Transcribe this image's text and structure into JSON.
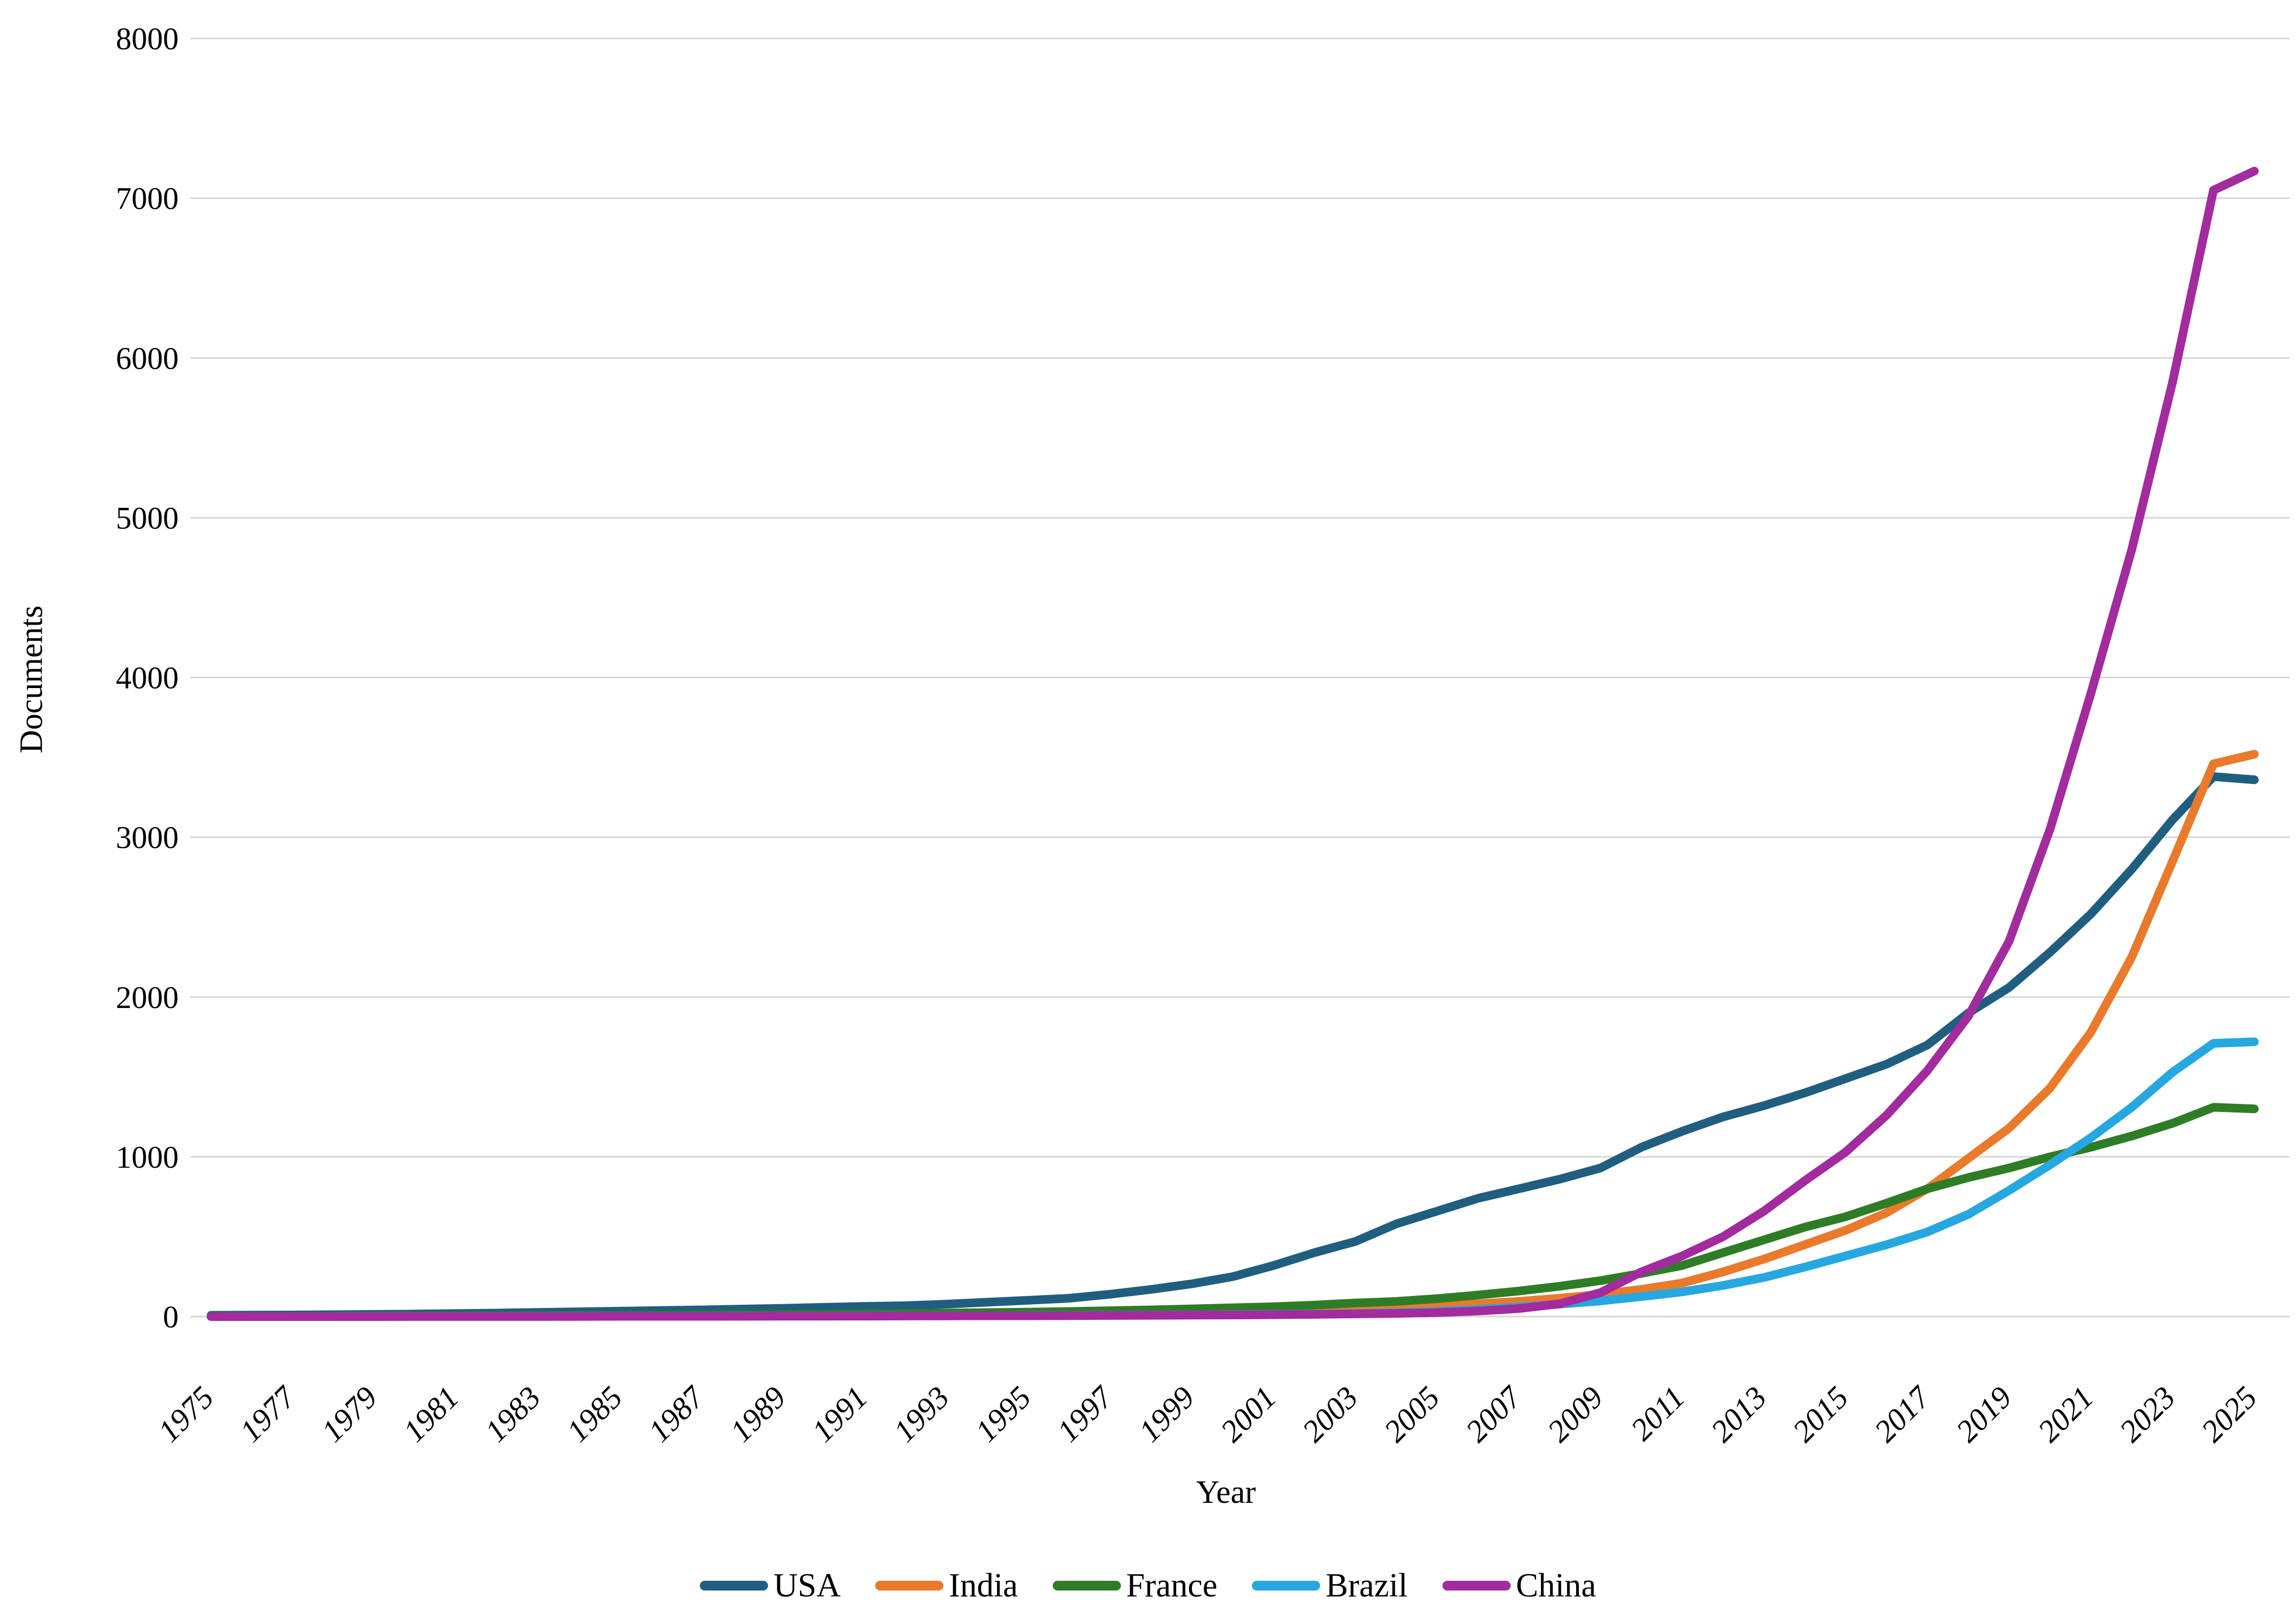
{
  "chart_data": {
    "type": "line",
    "title": "",
    "xlabel": "Year",
    "ylabel": "Documents",
    "ylim": [
      0,
      8000
    ],
    "grid": "horizontal",
    "legend_position": "bottom-center",
    "yticks": [
      0,
      1000,
      2000,
      3000,
      4000,
      5000,
      6000,
      7000,
      8000
    ],
    "xticks": [
      1975,
      1977,
      1979,
      1981,
      1983,
      1985,
      1987,
      1989,
      1991,
      1993,
      1995,
      1997,
      1999,
      2001,
      2003,
      2005,
      2007,
      2009,
      2011,
      2013,
      2015,
      2017,
      2019,
      2021,
      2023,
      2025
    ],
    "years": [
      1975,
      1976,
      1977,
      1978,
      1979,
      1980,
      1981,
      1982,
      1983,
      1984,
      1985,
      1986,
      1987,
      1988,
      1989,
      1990,
      1991,
      1992,
      1993,
      1994,
      1995,
      1996,
      1997,
      1998,
      1999,
      2000,
      2001,
      2002,
      2003,
      2004,
      2005,
      2006,
      2007,
      2008,
      2009,
      2010,
      2011,
      2012,
      2013,
      2014,
      2015,
      2016,
      2017,
      2018,
      2019,
      2020,
      2021,
      2022,
      2023,
      2024,
      2025
    ],
    "series": [
      {
        "name": "USA",
        "color": "#205E80",
        "values": [
          8,
          9,
          10,
          12,
          14,
          16,
          19,
          22,
          26,
          30,
          34,
          38,
          42,
          47,
          52,
          58,
          64,
          68,
          78,
          90,
          102,
          115,
          140,
          170,
          205,
          250,
          320,
          400,
          470,
          580,
          660,
          740,
          800,
          860,
          930,
          1060,
          1160,
          1250,
          1320,
          1400,
          1490,
          1580,
          1700,
          1900,
          2060,
          2280,
          2520,
          2800,
          3110,
          3380,
          3360
        ]
      },
      {
        "name": "India",
        "color": "#E97A2B",
        "values": [
          1,
          1,
          1,
          2,
          2,
          2,
          3,
          3,
          4,
          4,
          5,
          5,
          6,
          7,
          8,
          9,
          10,
          11,
          12,
          14,
          16,
          18,
          21,
          24,
          28,
          33,
          38,
          44,
          50,
          56,
          65,
          80,
          95,
          115,
          140,
          170,
          210,
          280,
          360,
          450,
          540,
          650,
          800,
          990,
          1180,
          1430,
          1780,
          2250,
          2850,
          3460,
          3520
        ]
      },
      {
        "name": "France",
        "color": "#2E7D26",
        "values": [
          2,
          2,
          3,
          3,
          4,
          4,
          5,
          5,
          6,
          7,
          8,
          9,
          10,
          12,
          13,
          15,
          17,
          19,
          22,
          25,
          28,
          32,
          37,
          42,
          48,
          55,
          62,
          72,
          85,
          95,
          112,
          135,
          160,
          190,
          225,
          270,
          320,
          400,
          480,
          560,
          625,
          710,
          800,
          870,
          930,
          1000,
          1060,
          1130,
          1210,
          1310,
          1300
        ]
      },
      {
        "name": "Brazil",
        "color": "#27A7E0",
        "values": [
          0,
          0,
          0,
          0,
          1,
          1,
          1,
          1,
          1,
          2,
          2,
          2,
          2,
          3,
          3,
          3,
          4,
          4,
          5,
          5,
          6,
          7,
          8,
          9,
          10,
          12,
          14,
          16,
          19,
          25,
          32,
          45,
          60,
          78,
          98,
          125,
          155,
          195,
          245,
          310,
          380,
          450,
          530,
          640,
          790,
          950,
          1120,
          1310,
          1530,
          1710,
          1720
        ]
      },
      {
        "name": "China",
        "color": "#A22B9E",
        "values": [
          0,
          0,
          0,
          0,
          0,
          1,
          1,
          1,
          1,
          1,
          2,
          2,
          2,
          2,
          3,
          3,
          3,
          4,
          4,
          5,
          5,
          6,
          7,
          8,
          9,
          10,
          12,
          14,
          17,
          20,
          25,
          35,
          50,
          80,
          150,
          280,
          380,
          500,
          660,
          850,
          1030,
          1260,
          1540,
          1880,
          2350,
          3050,
          3900,
          4800,
          5850,
          7050,
          7170
        ]
      }
    ],
    "style": {
      "gridline_color": "#D6D6D6",
      "tick_label_color": "#000000",
      "background": "#ffffff"
    }
  }
}
